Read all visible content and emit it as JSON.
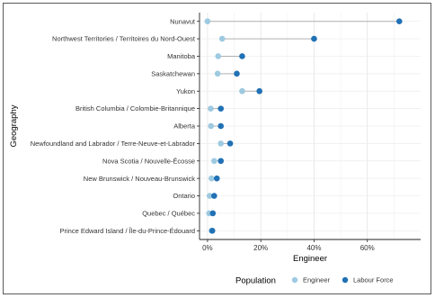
{
  "chart_data": {
    "type": "dot-range",
    "title": "",
    "xlabel": "Engineer",
    "ylabel": "Geography",
    "xlim": [
      -3,
      80
    ],
    "x_ticks": [
      0,
      20,
      40,
      60
    ],
    "x_tick_labels": [
      "0%",
      "20%",
      "40%",
      "60%"
    ],
    "x_unit": "%",
    "grid": true,
    "legend": {
      "title": "Population",
      "position": "bottom"
    },
    "categories": [
      "Nunavut",
      "Northwest Territories / Territoires du Nord-Ouest",
      "Manitoba",
      "Saskatchewan",
      "Yukon",
      "British Columbia / Colombie-Britannique",
      "Alberta",
      "Newfoundland and Labrador / Terre-Neuve-et-Labrador",
      "Nova Scotia / Nouvelle-Écosse",
      "New Brunswick / Nouveau-Brunswick",
      "Ontario",
      "Quebec / Québec",
      "Prince Edward Island / Île-du-Prince-Édouard"
    ],
    "series": [
      {
        "name": "Engineer",
        "color": "#9ecae1",
        "values": [
          0,
          5.5,
          4,
          3.8,
          13,
          1.2,
          1.3,
          5,
          2.5,
          1.5,
          0.8,
          0.6,
          1.5
        ]
      },
      {
        "name": "Labour Force",
        "color": "#2171b5",
        "values": [
          72,
          40,
          13,
          11,
          19.5,
          5,
          5,
          8.5,
          5,
          3.5,
          2.5,
          2,
          1.8
        ]
      }
    ],
    "connector_color": "#b0b0b0"
  }
}
